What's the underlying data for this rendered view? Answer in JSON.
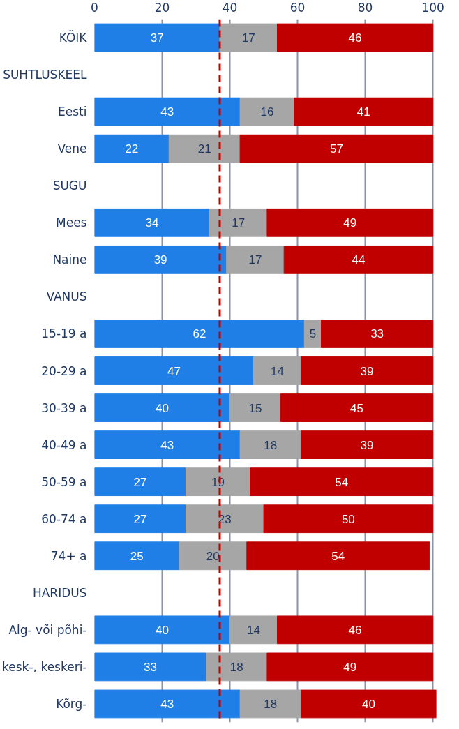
{
  "chart_data": {
    "type": "bar",
    "orientation": "horizontal",
    "stacked": true,
    "data_labels": true,
    "grid": "x",
    "categories": [
      "KÕIK",
      "SUHTLUSKEEL",
      "Eesti",
      "Vene",
      "SUGU",
      "Mees",
      "Naine",
      "VANUS",
      "15-19 a",
      "20-29 a",
      "30-39 a",
      "40-49 a",
      "50-59 a",
      "60-74 a",
      "74+ a",
      "HARIDUS",
      "Alg- või põhi-",
      "kesk-, keskeri-",
      "Kõrg-"
    ],
    "series": [
      {
        "color": "#1f7fe6",
        "values": [
          37,
          null,
          43,
          22,
          null,
          34,
          39,
          null,
          62,
          47,
          40,
          43,
          27,
          27,
          25,
          null,
          40,
          33,
          43
        ]
      },
      {
        "color": "#a6a6a6",
        "values": [
          17,
          null,
          16,
          21,
          null,
          17,
          17,
          null,
          5,
          14,
          15,
          18,
          19,
          23,
          20,
          null,
          14,
          18,
          18
        ]
      },
      {
        "color": "#c00000",
        "values": [
          46,
          null,
          41,
          57,
          null,
          49,
          44,
          null,
          33,
          39,
          45,
          39,
          54,
          50,
          54,
          null,
          46,
          49,
          40
        ]
      }
    ],
    "xlim": [
      0,
      101
    ],
    "xticks": [
      0,
      20,
      40,
      60,
      80,
      100
    ],
    "ref_lines": [
      {
        "axis": "x",
        "value": 37,
        "color": "#c00000",
        "line_style": "dashed"
      }
    ]
  }
}
